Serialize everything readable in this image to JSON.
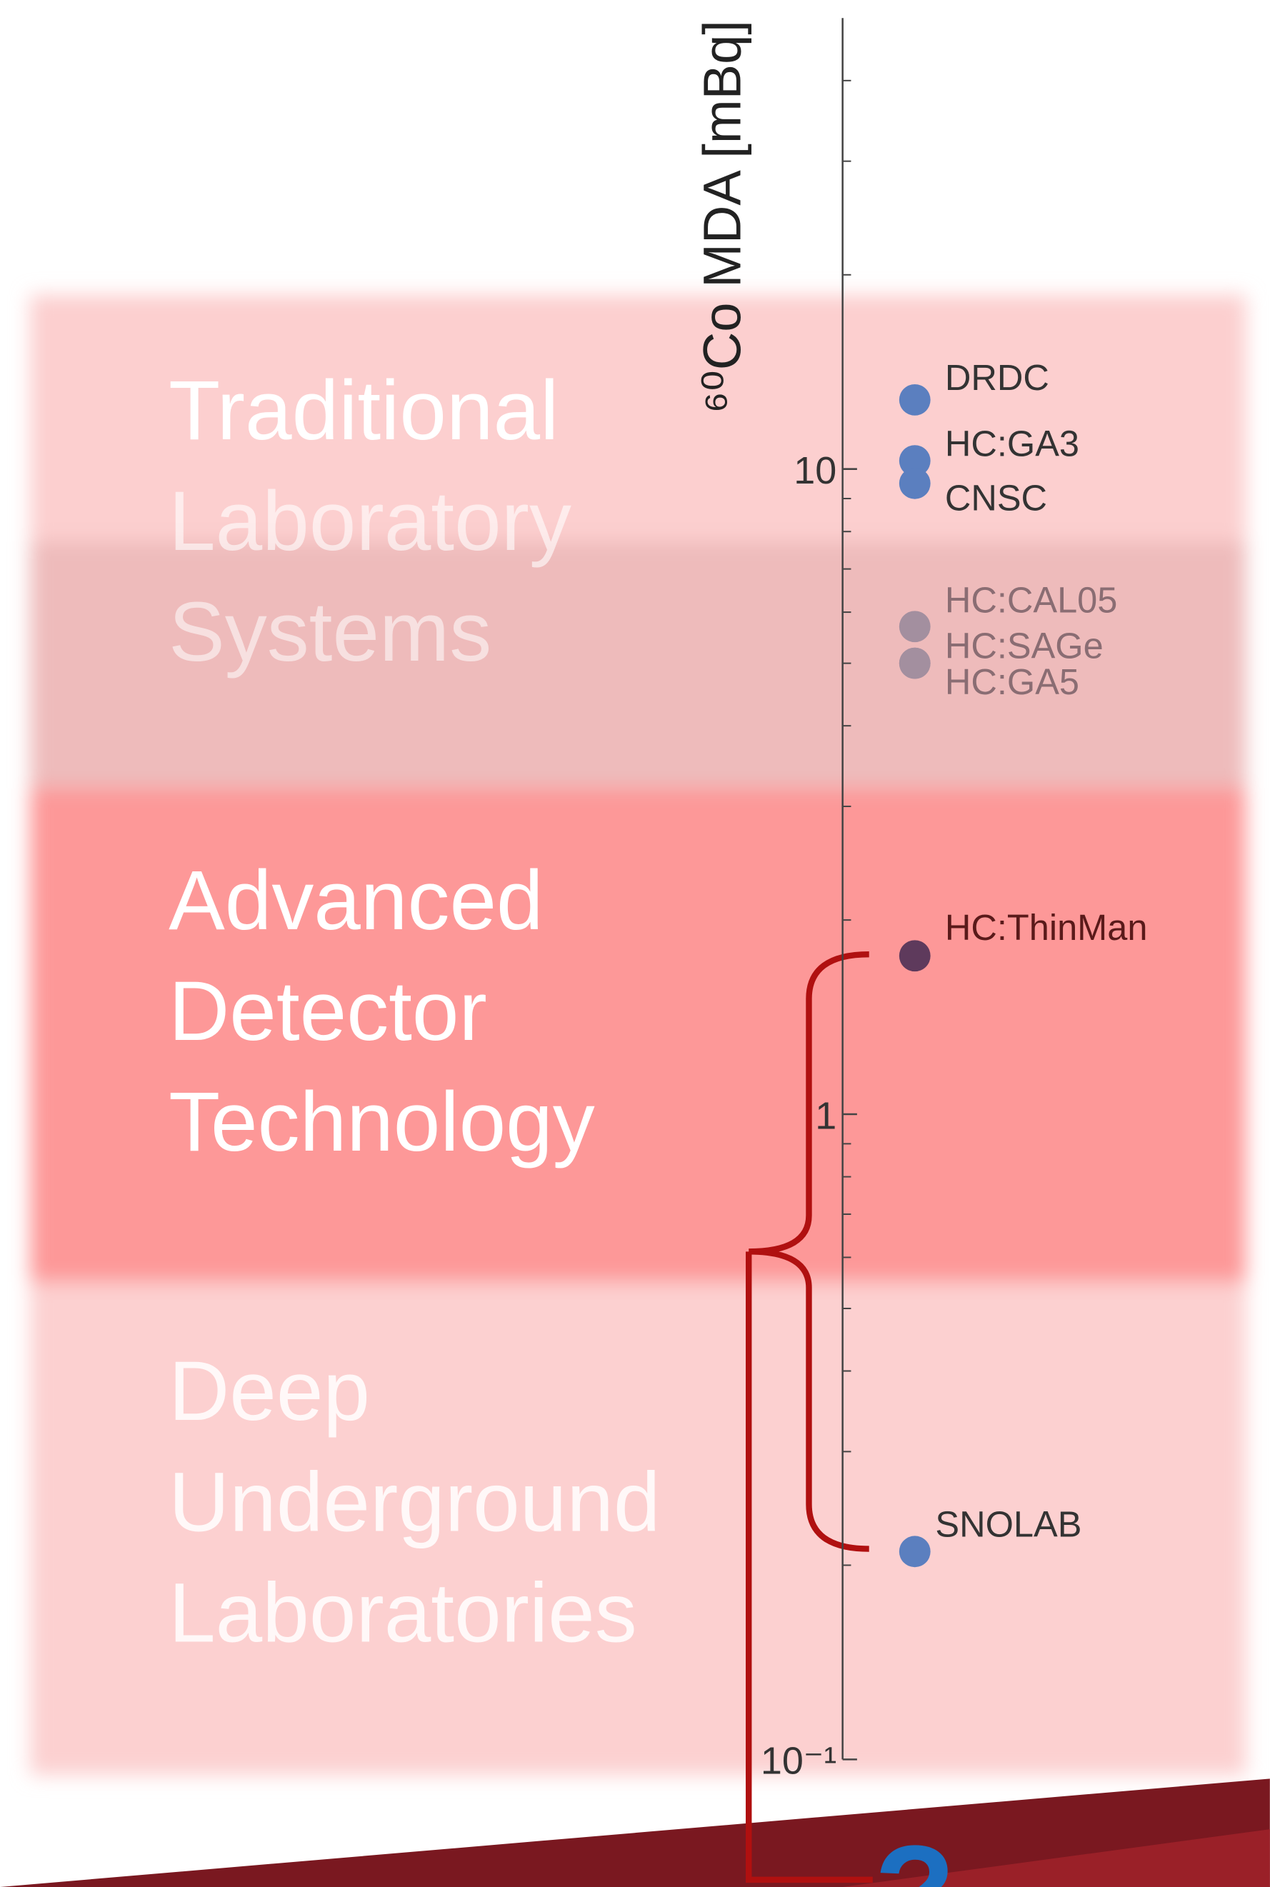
{
  "chart_data": {
    "type": "scatter",
    "y_label": "⁶⁰Co MDA [mBq]",
    "log_y": true,
    "ylim": [
      0.1,
      50
    ],
    "yticks": [
      {
        "value": 0.1,
        "label": "10⁻¹"
      },
      1,
      10
    ],
    "minor_yticks": [
      0.2,
      0.3,
      0.4,
      0.5,
      0.6,
      0.7,
      0.8,
      0.9,
      2,
      3,
      4,
      5,
      6,
      7,
      8,
      9,
      20,
      30,
      40
    ],
    "categories": [
      "DRDC",
      "HC:GA3",
      "CNSC",
      "HC:CAL05",
      "HC:SAGe",
      "HC:GA5",
      "HC:ThinMan",
      "SNOLAB"
    ],
    "values": [
      12.8,
      10.3,
      9.5,
      5.7,
      5.0,
      5.0,
      1.76,
      0.21
    ],
    "colors": [
      "#5b7fbf",
      "#5b7fbf",
      "#5b7fbf",
      "#a38f9f",
      "#a38f9f",
      "#a38f9f",
      "#5e3a5c",
      "#5b7fbf"
    ],
    "label_colors": [
      "#333333",
      "#333333",
      "#333333",
      "#8a6d73",
      "#8a6d73",
      "#8a6d73",
      "#5a1a1a",
      "#333333"
    ],
    "bands": [
      {
        "lines": [
          "Traditional",
          "Laboratory",
          "Systems"
        ]
      },
      {
        "lines": [
          "Advanced",
          "Detector",
          "Technology"
        ]
      },
      {
        "lines": [
          "Deep",
          "Underground",
          "Laboratories"
        ]
      }
    ],
    "question": "?"
  }
}
